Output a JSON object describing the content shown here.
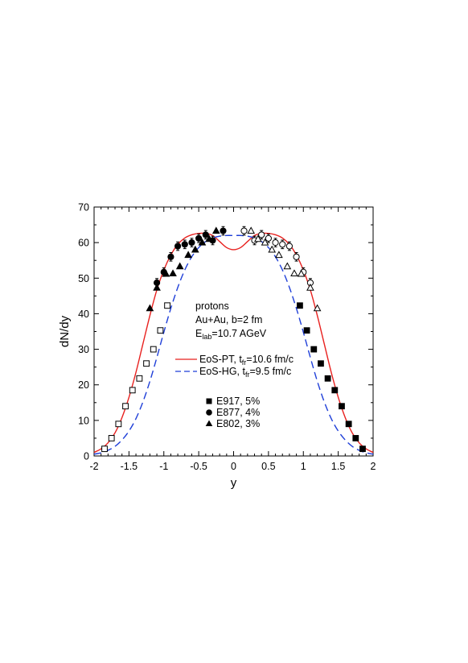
{
  "chart_data": {
    "type": "scatter",
    "xlabel": "y",
    "ylabel": "dN/dy",
    "xlim": [
      -2,
      2
    ],
    "ylim": [
      0,
      70
    ],
    "x_ticks": [
      -2,
      -1.5,
      -1,
      -0.5,
      0,
      0.5,
      1,
      1.5,
      2
    ],
    "x_tick_labels": [
      "-2",
      "-1.5",
      "-1",
      "-0.5",
      "0",
      "0.5",
      "1",
      "1.5",
      "2"
    ],
    "y_ticks": [
      0,
      10,
      20,
      30,
      40,
      50,
      60,
      70
    ],
    "y_tick_labels": [
      "0",
      "10",
      "20",
      "30",
      "40",
      "50",
      "60",
      "70"
    ],
    "grid": false,
    "annotations": {
      "line1": "protons",
      "line2": "Au+Au, b=2 fm",
      "line3_main": "E",
      "line3_sub": "lab",
      "line3_rest": "=10.7 AGeV"
    },
    "curves": [
      {
        "name_main": "EoS-PT, t",
        "name_sub": "fr",
        "name_rest": "=10.6 fm/c",
        "color": "#e8201e",
        "style": "solid",
        "x": [
          -2.0,
          -1.9,
          -1.8,
          -1.7,
          -1.6,
          -1.5,
          -1.4,
          -1.3,
          -1.2,
          -1.1,
          -1.0,
          -0.9,
          -0.8,
          -0.7,
          -0.6,
          -0.5,
          -0.4,
          -0.3,
          -0.2,
          -0.1,
          0.0,
          0.1,
          0.2,
          0.3,
          0.4,
          0.5,
          0.6,
          0.7,
          0.8,
          0.9,
          1.0,
          1.1,
          1.2,
          1.3,
          1.4,
          1.5,
          1.6,
          1.7,
          1.8,
          1.9,
          2.0
        ],
        "y": [
          1.0,
          2.0,
          3.7,
          6.5,
          10.8,
          16.5,
          23.5,
          31.5,
          39.5,
          46.7,
          52.3,
          56.5,
          59.5,
          61.3,
          62.2,
          62.6,
          62.6,
          62.0,
          60.3,
          58.6,
          58.0,
          58.6,
          60.3,
          62.0,
          62.6,
          62.6,
          62.2,
          61.3,
          59.5,
          56.5,
          52.3,
          46.7,
          39.5,
          31.5,
          23.5,
          16.5,
          10.8,
          6.5,
          3.7,
          2.0,
          1.0
        ]
      },
      {
        "name_main": "EoS-HG, t",
        "name_sub": "fr",
        "name_rest": "=9.5 fm/c",
        "color": "#1f3fd8",
        "style": "dashed",
        "x": [
          -2.0,
          -1.9,
          -1.8,
          -1.7,
          -1.6,
          -1.5,
          -1.4,
          -1.3,
          -1.2,
          -1.1,
          -1.0,
          -0.9,
          -0.8,
          -0.7,
          -0.6,
          -0.5,
          -0.4,
          -0.3,
          -0.2,
          -0.1,
          0.0,
          0.1,
          0.2,
          0.3,
          0.4,
          0.5,
          0.6,
          0.7,
          0.8,
          0.9,
          1.0,
          1.1,
          1.2,
          1.3,
          1.4,
          1.5,
          1.6,
          1.7,
          1.8,
          1.9,
          2.0
        ],
        "y": [
          0.5,
          0.9,
          1.6,
          2.7,
          4.5,
          7.0,
          10.5,
          15.2,
          21.0,
          27.7,
          34.8,
          41.5,
          47.4,
          52.3,
          56.0,
          58.6,
          60.3,
          61.3,
          61.8,
          62.0,
          62.0,
          62.0,
          61.8,
          61.3,
          60.3,
          58.6,
          56.0,
          52.3,
          47.4,
          41.5,
          34.8,
          27.7,
          21.0,
          15.2,
          10.5,
          7.0,
          4.5,
          2.7,
          1.6,
          0.9,
          0.5
        ]
      }
    ],
    "series": [
      {
        "name": "E917, 5%",
        "marker": "square",
        "points": [
          {
            "x": 0.95,
            "y": 42.3,
            "filled": true
          },
          {
            "x": 1.05,
            "y": 35.3,
            "filled": true
          },
          {
            "x": 1.15,
            "y": 30.0,
            "filled": true
          },
          {
            "x": 1.25,
            "y": 26.0,
            "filled": true
          },
          {
            "x": 1.35,
            "y": 21.8,
            "filled": true
          },
          {
            "x": 1.45,
            "y": 18.5,
            "filled": true
          },
          {
            "x": 1.55,
            "y": 14.0,
            "filled": true
          },
          {
            "x": 1.65,
            "y": 9.0,
            "filled": true
          },
          {
            "x": 1.75,
            "y": 5.0,
            "filled": true
          },
          {
            "x": 1.85,
            "y": 2.0,
            "filled": true
          },
          {
            "x": -0.95,
            "y": 42.3,
            "filled": false
          },
          {
            "x": -1.05,
            "y": 35.3,
            "filled": false
          },
          {
            "x": -1.15,
            "y": 30.0,
            "filled": false
          },
          {
            "x": -1.25,
            "y": 26.0,
            "filled": false
          },
          {
            "x": -1.35,
            "y": 21.8,
            "filled": false
          },
          {
            "x": -1.45,
            "y": 18.5,
            "filled": false
          },
          {
            "x": -1.55,
            "y": 14.0,
            "filled": false
          },
          {
            "x": -1.65,
            "y": 9.0,
            "filled": false
          },
          {
            "x": -1.75,
            "y": 5.0,
            "filled": false
          },
          {
            "x": -1.85,
            "y": 2.0,
            "filled": false
          }
        ]
      },
      {
        "name": "E877, 4%",
        "marker": "circle",
        "points": [
          {
            "x": -1.1,
            "y": 48.7,
            "err": 1.2,
            "filled": true
          },
          {
            "x": -1.0,
            "y": 51.7,
            "err": 1.2,
            "filled": true
          },
          {
            "x": -0.9,
            "y": 56.0,
            "err": 1.2,
            "filled": true
          },
          {
            "x": -0.8,
            "y": 59.0,
            "err": 1.2,
            "filled": true
          },
          {
            "x": -0.7,
            "y": 59.5,
            "err": 1.2,
            "filled": true
          },
          {
            "x": -0.6,
            "y": 60.0,
            "err": 1.2,
            "filled": true
          },
          {
            "x": -0.5,
            "y": 61.2,
            "err": 1.2,
            "filled": true
          },
          {
            "x": -0.4,
            "y": 62.2,
            "err": 1.2,
            "filled": true
          },
          {
            "x": -0.3,
            "y": 60.6,
            "err": 1.2,
            "filled": true
          },
          {
            "x": -0.15,
            "y": 63.3,
            "err": 1.2,
            "filled": true
          },
          {
            "x": 0.15,
            "y": 63.3,
            "err": 1.2,
            "filled": false
          },
          {
            "x": 0.3,
            "y": 60.6,
            "err": 1.2,
            "filled": false
          },
          {
            "x": 0.4,
            "y": 62.2,
            "err": 1.2,
            "filled": false
          },
          {
            "x": 0.5,
            "y": 61.2,
            "err": 1.2,
            "filled": false
          },
          {
            "x": 0.6,
            "y": 60.0,
            "err": 1.2,
            "filled": false
          },
          {
            "x": 0.7,
            "y": 59.5,
            "err": 1.2,
            "filled": false
          },
          {
            "x": 0.8,
            "y": 59.0,
            "err": 1.2,
            "filled": false
          },
          {
            "x": 0.9,
            "y": 56.0,
            "err": 1.2,
            "filled": false
          },
          {
            "x": 1.0,
            "y": 51.7,
            "err": 1.2,
            "filled": false
          },
          {
            "x": 1.1,
            "y": 48.7,
            "err": 1.2,
            "filled": false
          }
        ]
      },
      {
        "name": "E802, 3%",
        "marker": "triangle",
        "points": [
          {
            "x": -1.2,
            "y": 41.5,
            "filled": true
          },
          {
            "x": -1.1,
            "y": 47.3,
            "filled": true
          },
          {
            "x": -0.97,
            "y": 51.2,
            "filled": true
          },
          {
            "x": -0.87,
            "y": 51.3,
            "filled": true
          },
          {
            "x": -0.77,
            "y": 53.3,
            "filled": true
          },
          {
            "x": -0.65,
            "y": 56.5,
            "filled": true
          },
          {
            "x": -0.55,
            "y": 58.0,
            "filled": true
          },
          {
            "x": -0.45,
            "y": 60.0,
            "filled": true
          },
          {
            "x": -0.35,
            "y": 61.0,
            "filled": true
          },
          {
            "x": -0.25,
            "y": 63.3,
            "filled": true
          },
          {
            "x": 0.25,
            "y": 63.3,
            "filled": false
          },
          {
            "x": 0.35,
            "y": 61.0,
            "filled": false
          },
          {
            "x": 0.45,
            "y": 60.0,
            "filled": false
          },
          {
            "x": 0.55,
            "y": 58.0,
            "filled": false
          },
          {
            "x": 0.65,
            "y": 56.5,
            "filled": false
          },
          {
            "x": 0.77,
            "y": 53.3,
            "filled": false
          },
          {
            "x": 0.87,
            "y": 51.3,
            "filled": false
          },
          {
            "x": 0.97,
            "y": 51.2,
            "filled": false
          },
          {
            "x": 1.1,
            "y": 47.3,
            "filled": false
          },
          {
            "x": 1.2,
            "y": 41.5,
            "filled": false
          }
        ]
      }
    ]
  }
}
